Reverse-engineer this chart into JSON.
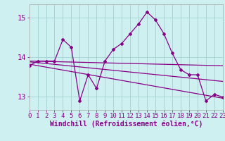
{
  "bg_color": "#cff0f0",
  "line_color": "#880088",
  "grid_color": "#99cccc",
  "xlabel": "Windchill (Refroidissement éolien,°C)",
  "ylabel_ticks": [
    13,
    14,
    15
  ],
  "xlim": [
    0,
    23
  ],
  "ylim": [
    12.65,
    15.35
  ],
  "x_ticks": [
    0,
    1,
    2,
    3,
    4,
    5,
    6,
    7,
    8,
    9,
    10,
    11,
    12,
    13,
    14,
    15,
    16,
    17,
    18,
    19,
    20,
    21,
    22,
    23
  ],
  "line1_x": [
    0,
    1,
    2,
    3,
    4,
    5,
    6,
    7,
    8,
    9,
    10,
    11,
    12,
    13,
    14,
    15,
    16,
    17,
    18,
    19,
    20,
    21,
    22,
    23
  ],
  "line1_y": [
    13.78,
    13.9,
    13.9,
    13.9,
    14.45,
    14.25,
    12.88,
    13.55,
    13.2,
    13.9,
    14.2,
    14.35,
    14.6,
    14.85,
    15.15,
    14.95,
    14.6,
    14.1,
    13.68,
    13.55,
    13.55,
    12.88,
    13.05,
    12.98
  ],
  "line2_x": [
    0,
    23
  ],
  "line2_y": [
    13.9,
    13.78
  ],
  "line3_x": [
    0,
    23
  ],
  "line3_y": [
    13.88,
    13.38
  ],
  "line4_x": [
    0,
    23
  ],
  "line4_y": [
    13.82,
    12.95
  ],
  "tick_fontsize": 6.5,
  "xlabel_fontsize": 7,
  "marker_size": 2.0,
  "linewidth": 0.9
}
